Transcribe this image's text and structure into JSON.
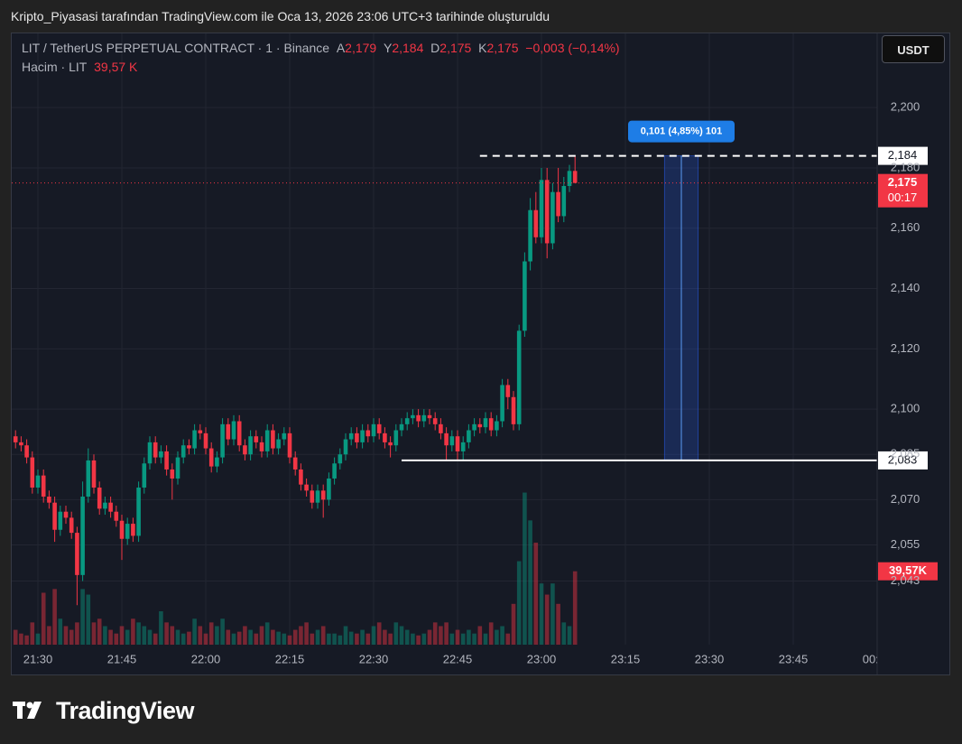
{
  "header": {
    "caption": "Kripto_Piyasasi tarafından TradingView.com ile Oca 13, 2026 23:06 UTC+3 tarihinde oluşturuldu"
  },
  "chart_data": {
    "type": "candlestick",
    "legend": {
      "symbol": "LIT / TetherUS PERPETUAL CONTRACT · 1 · Binance",
      "open_label": "A",
      "open": "2,179",
      "high_label": "Y",
      "high": "2,184",
      "low_label": "D",
      "low": "2,175",
      "close_label": "K",
      "close": "2,175",
      "change": "−0,003 (−0,14%)",
      "volume_title": "Hacim · LIT",
      "volume": "39,57 K"
    },
    "currency_button": "USDT",
    "x": [
      1286,
      1287,
      1288,
      1289,
      1290,
      1291,
      1292,
      1293,
      1294,
      1295,
      1296,
      1297,
      1298,
      1299,
      1300,
      1301,
      1302,
      1303,
      1304,
      1305,
      1306,
      1307,
      1308,
      1309,
      1310,
      1311,
      1312,
      1313,
      1314,
      1315,
      1316,
      1317,
      1318,
      1319,
      1320,
      1321,
      1322,
      1323,
      1324,
      1325,
      1326,
      1327,
      1328,
      1329,
      1330,
      1331,
      1332,
      1333,
      1334,
      1335,
      1336,
      1337,
      1338,
      1339,
      1340,
      1341,
      1342,
      1343,
      1344,
      1345,
      1346,
      1347,
      1348,
      1349,
      1350,
      1351,
      1352,
      1353,
      1354,
      1355,
      1356,
      1357,
      1358,
      1359,
      1360,
      1361,
      1362,
      1363,
      1364,
      1365,
      1366,
      1367,
      1368,
      1369,
      1370,
      1371,
      1372,
      1373,
      1374,
      1375,
      1376,
      1377,
      1378,
      1379,
      1380,
      1381,
      1382,
      1383,
      1384,
      1385,
      1386
    ],
    "xlim": [
      1285.16,
      1440
    ],
    "xticks": [
      {
        "value": 1290,
        "label": "21:30"
      },
      {
        "value": 1305,
        "label": "21:45"
      },
      {
        "value": 1320,
        "label": "22:00"
      },
      {
        "value": 1335,
        "label": "22:15"
      },
      {
        "value": 1350,
        "label": "22:30"
      },
      {
        "value": 1365,
        "label": "22:45"
      },
      {
        "value": 1380,
        "label": "23:00"
      },
      {
        "value": 1395,
        "label": "23:15"
      },
      {
        "value": 1410,
        "label": "23:30"
      },
      {
        "value": 1425,
        "label": "23:45"
      },
      {
        "value": 1440,
        "label": "00:00"
      }
    ],
    "open": [
      2.091,
      2.089,
      2.088,
      2.084,
      2.074,
      2.078,
      2.071,
      2.069,
      2.06,
      2.066,
      2.064,
      2.059,
      2.045,
      2.071,
      2.083,
      2.074,
      2.067,
      2.069,
      2.066,
      2.063,
      2.057,
      2.062,
      2.058,
      2.074,
      2.082,
      2.089,
      2.084,
      2.086,
      2.08,
      2.077,
      2.084,
      2.088,
      2.087,
      2.093,
      2.092,
      2.087,
      2.081,
      2.084,
      2.095,
      2.09,
      2.096,
      2.088,
      2.085,
      2.091,
      2.089,
      2.086,
      2.093,
      2.087,
      2.09,
      2.092,
      2.084,
      2.08,
      2.075,
      2.073,
      2.069,
      2.073,
      2.07,
      2.077,
      2.082,
      2.085,
      2.09,
      2.092,
      2.089,
      2.093,
      2.091,
      2.095,
      2.092,
      2.089,
      2.088,
      2.093,
      2.095,
      2.097,
      2.098,
      2.096,
      2.098,
      2.097,
      2.095,
      2.092,
      2.088,
      2.091,
      2.086,
      2.089,
      2.093,
      2.095,
      2.094,
      2.097,
      2.093,
      2.096,
      2.108,
      2.104,
      2.095,
      2.126,
      2.149,
      2.166,
      2.157,
      2.176,
      2.155,
      2.172,
      2.164,
      2.174,
      2.179
    ],
    "high": [
      2.093,
      2.091,
      2.09,
      2.086,
      2.08,
      2.08,
      2.073,
      2.071,
      2.068,
      2.068,
      2.066,
      2.061,
      2.076,
      2.087,
      2.085,
      2.076,
      2.071,
      2.071,
      2.068,
      2.065,
      2.064,
      2.064,
      2.076,
      2.084,
      2.091,
      2.091,
      2.088,
      2.088,
      2.082,
      2.086,
      2.09,
      2.09,
      2.095,
      2.095,
      2.094,
      2.089,
      2.086,
      2.097,
      2.097,
      2.098,
      2.098,
      2.09,
      2.093,
      2.093,
      2.091,
      2.095,
      2.095,
      2.092,
      2.094,
      2.094,
      2.086,
      2.082,
      2.077,
      2.075,
      2.075,
      2.075,
      2.079,
      2.084,
      2.087,
      2.092,
      2.094,
      2.094,
      2.095,
      2.095,
      2.097,
      2.097,
      2.094,
      2.091,
      2.095,
      2.097,
      2.099,
      2.1,
      2.1,
      2.1,
      2.1,
      2.099,
      2.097,
      2.094,
      2.093,
      2.093,
      2.091,
      2.095,
      2.097,
      2.097,
      2.099,
      2.099,
      2.098,
      2.11,
      2.11,
      2.106,
      2.128,
      2.152,
      2.17,
      2.172,
      2.18,
      2.18,
      2.175,
      2.18,
      2.177,
      2.181,
      2.184
    ],
    "low": [
      2.087,
      2.086,
      2.082,
      2.072,
      2.072,
      2.069,
      2.067,
      2.056,
      2.058,
      2.062,
      2.057,
      2.035,
      2.043,
      2.069,
      2.072,
      2.065,
      2.065,
      2.064,
      2.061,
      2.05,
      2.055,
      2.056,
      2.056,
      2.072,
      2.08,
      2.082,
      2.082,
      2.078,
      2.07,
      2.075,
      2.082,
      2.085,
      2.085,
      2.09,
      2.085,
      2.079,
      2.079,
      2.082,
      2.088,
      2.088,
      2.086,
      2.083,
      2.083,
      2.087,
      2.084,
      2.084,
      2.085,
      2.085,
      2.088,
      2.082,
      2.078,
      2.073,
      2.071,
      2.067,
      2.067,
      2.064,
      2.068,
      2.075,
      2.08,
      2.083,
      2.088,
      2.087,
      2.087,
      2.089,
      2.089,
      2.09,
      2.087,
      2.084,
      2.086,
      2.091,
      2.093,
      2.095,
      2.094,
      2.094,
      2.095,
      2.093,
      2.09,
      2.083,
      2.086,
      2.083,
      2.083,
      2.087,
      2.091,
      2.092,
      2.092,
      2.091,
      2.091,
      2.094,
      2.1,
      2.093,
      2.093,
      2.124,
      2.146,
      2.155,
      2.155,
      2.15,
      2.153,
      2.162,
      2.162,
      2.172,
      2.175
    ],
    "close": [
      2.089,
      2.088,
      2.084,
      2.074,
      2.078,
      2.071,
      2.069,
      2.06,
      2.066,
      2.064,
      2.059,
      2.045,
      2.071,
      2.083,
      2.074,
      2.067,
      2.069,
      2.066,
      2.063,
      2.057,
      2.062,
      2.058,
      2.074,
      2.082,
      2.089,
      2.084,
      2.086,
      2.08,
      2.077,
      2.084,
      2.088,
      2.087,
      2.093,
      2.092,
      2.087,
      2.081,
      2.084,
      2.095,
      2.09,
      2.096,
      2.088,
      2.085,
      2.091,
      2.089,
      2.086,
      2.093,
      2.087,
      2.09,
      2.092,
      2.084,
      2.08,
      2.075,
      2.073,
      2.069,
      2.073,
      2.07,
      2.077,
      2.082,
      2.085,
      2.09,
      2.092,
      2.089,
      2.093,
      2.091,
      2.095,
      2.092,
      2.089,
      2.088,
      2.093,
      2.095,
      2.097,
      2.098,
      2.096,
      2.098,
      2.097,
      2.095,
      2.092,
      2.088,
      2.091,
      2.086,
      2.089,
      2.093,
      2.095,
      2.094,
      2.097,
      2.093,
      2.096,
      2.108,
      2.104,
      2.095,
      2.126,
      2.149,
      2.166,
      2.157,
      2.176,
      2.155,
      2.172,
      2.164,
      2.174,
      2.179,
      2.175
    ],
    "volume": [
      8,
      6,
      5,
      12,
      6,
      28,
      10,
      30,
      14,
      10,
      8,
      12,
      30,
      27,
      12,
      14,
      10,
      8,
      6,
      10,
      8,
      14,
      12,
      10,
      8,
      6,
      18,
      12,
      10,
      8,
      6,
      7,
      14,
      10,
      6,
      12,
      10,
      14,
      8,
      6,
      7,
      10,
      8,
      6,
      10,
      12,
      8,
      7,
      6,
      5,
      8,
      10,
      12,
      6,
      8,
      10,
      6,
      6,
      5,
      10,
      7,
      6,
      8,
      6,
      10,
      12,
      8,
      6,
      12,
      10,
      8,
      6,
      5,
      6,
      8,
      12,
      10,
      12,
      6,
      8,
      6,
      8,
      6,
      10,
      6,
      12,
      8,
      10,
      6,
      22,
      45,
      82,
      67,
      55,
      33,
      27,
      33,
      22,
      12,
      10,
      39.57
    ],
    "volume_label": "39,57K",
    "volume_ylim": [
      0,
      330
    ],
    "up_color": "#089981",
    "down_color": "#f23645",
    "ylim": [
      2.0219,
      2.2249
    ],
    "yticks": [
      {
        "value": 2.2,
        "label": "2,200"
      },
      {
        "value": 2.18,
        "label": "2,180"
      },
      {
        "value": 2.16,
        "label": "2,160"
      },
      {
        "value": 2.14,
        "label": "2,140"
      },
      {
        "value": 2.12,
        "label": "2,120"
      },
      {
        "value": 2.1,
        "label": "2,100"
      },
      {
        "value": 2.085,
        "label": "2,085"
      },
      {
        "value": 2.07,
        "label": "2,070"
      },
      {
        "value": 2.055,
        "label": "2,055"
      },
      {
        "value": 2.043,
        "label": "2,043"
      }
    ],
    "grid": true,
    "last_price": {
      "value": 2.175,
      "label": "2,175",
      "countdown": "00:17"
    },
    "lines": [
      {
        "value": 2.184,
        "label": "2,184",
        "style": "dashed",
        "from": 1369
      },
      {
        "value": 2.083,
        "label": "2,083",
        "style": "solid",
        "from": 1355
      }
    ],
    "measure": {
      "x": [
        1402,
        1408
      ],
      "y": [
        2.083,
        2.184
      ],
      "label": "0,101 (4,85%) 101"
    }
  },
  "footer": {
    "brand": "TradingView"
  }
}
